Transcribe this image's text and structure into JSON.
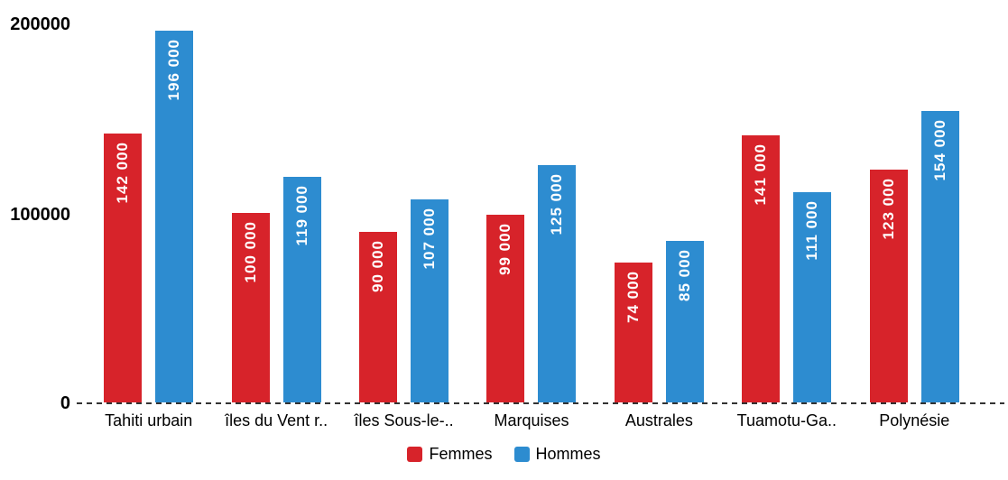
{
  "chart_data": {
    "type": "bar",
    "categories": [
      "Tahiti urbain",
      "îles du Vent r..",
      "îles Sous-le-..",
      "Marquises",
      "Australes",
      "Tuamotu-Ga..",
      "Polynésie"
    ],
    "series": [
      {
        "name": "Femmes",
        "color": "#d7232a",
        "values": [
          142000,
          100000,
          90000,
          99000,
          74000,
          141000,
          123000
        ],
        "value_labels": [
          "142 000",
          "100 000",
          "90 000",
          "99 000",
          "74 000",
          "141 000",
          "123 000"
        ]
      },
      {
        "name": "Hommes",
        "color": "#2d8cd0",
        "values": [
          196000,
          119000,
          107000,
          125000,
          85000,
          111000,
          154000
        ],
        "value_labels": [
          "196 000",
          "119 000",
          "107 000",
          "125 000",
          "85 000",
          "111 000",
          "154 000"
        ]
      }
    ],
    "title": "",
    "xlabel": "",
    "ylabel": "",
    "ylim": [
      0,
      200000
    ],
    "y_tick_labels": [
      "200000",
      "100000",
      "0"
    ],
    "grid": false,
    "legend_position": "bottom",
    "baseline_style": "dashed"
  },
  "legend": {
    "femmes_label": "Femmes",
    "hommes_label": "Hommes"
  },
  "colors": {
    "femmes": "#d7232a",
    "hommes": "#2d8cd0",
    "baseline": "#333333",
    "value_text": "#ffffff"
  }
}
